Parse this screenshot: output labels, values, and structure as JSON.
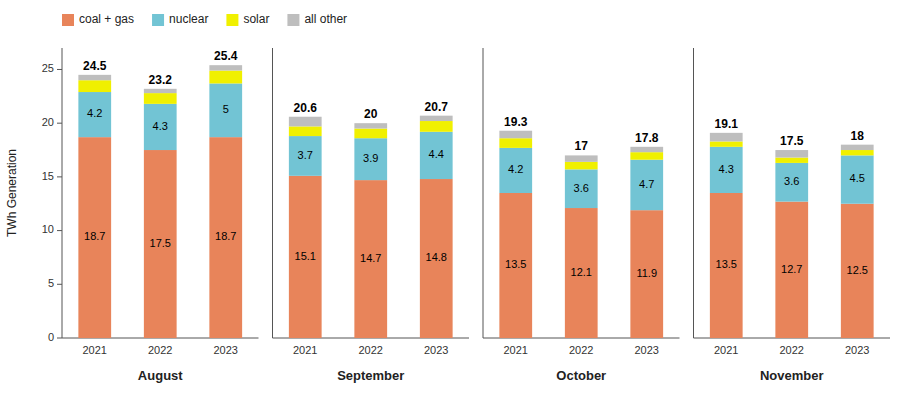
{
  "chart_data": [
    {
      "type": "bar",
      "stacked": true,
      "legend": "top",
      "xlabel": "August",
      "ylabel": "TWh Generation",
      "categories": [
        "2021",
        "2022",
        "2023"
      ],
      "ylim": [
        0,
        27
      ],
      "yticks": [
        0,
        5,
        10,
        15,
        20,
        25
      ],
      "series": [
        {
          "name": "coal + gas",
          "color": "#E8845A",
          "data_labels": true,
          "values": [
            18.7,
            17.5,
            18.7
          ]
        },
        {
          "name": "nuclear",
          "color": "#72C4D4",
          "data_labels": true,
          "values": [
            4.2,
            4.3,
            5.0
          ]
        },
        {
          "name": "solar",
          "color": "#F0F000",
          "values": [
            1.1,
            1.0,
            1.2
          ]
        },
        {
          "name": "all other",
          "color": "#BEBEBE",
          "values": [
            0.5,
            0.4,
            0.5
          ]
        }
      ],
      "totals": [
        24.5,
        23.2,
        25.4
      ]
    },
    {
      "type": "bar",
      "stacked": true,
      "tick_labels": "x",
      "xlabel": "September",
      "categories": [
        "2021",
        "2022",
        "2023"
      ],
      "ylim": [
        0,
        27
      ],
      "series": [
        {
          "name": "coal + gas",
          "color": "#E8845A",
          "data_labels": true,
          "values": [
            15.1,
            14.7,
            14.8
          ]
        },
        {
          "name": "nuclear",
          "color": "#72C4D4",
          "data_labels": true,
          "values": [
            3.7,
            3.9,
            4.4
          ]
        },
        {
          "name": "solar",
          "color": "#F0F000",
          "values": [
            0.9,
            0.9,
            1.0
          ]
        },
        {
          "name": "all other",
          "color": "#BEBEBE",
          "values": [
            0.9,
            0.5,
            0.5
          ]
        }
      ],
      "totals": [
        20.6,
        20.0,
        20.7
      ]
    },
    {
      "type": "bar",
      "stacked": true,
      "tick_labels": "x",
      "xlabel": "October",
      "categories": [
        "2021",
        "2022",
        "2023"
      ],
      "ylim": [
        0,
        27
      ],
      "series": [
        {
          "name": "coal + gas",
          "color": "#E8845A",
          "data_labels": true,
          "values": [
            13.5,
            12.1,
            11.9
          ]
        },
        {
          "name": "nuclear",
          "color": "#72C4D4",
          "data_labels": true,
          "values": [
            4.2,
            3.6,
            4.7
          ]
        },
        {
          "name": "solar",
          "color": "#F0F000",
          "values": [
            0.9,
            0.7,
            0.7
          ]
        },
        {
          "name": "all other",
          "color": "#BEBEBE",
          "values": [
            0.7,
            0.6,
            0.5
          ]
        }
      ],
      "totals": [
        19.3,
        17.0,
        17.8
      ]
    },
    {
      "type": "bar",
      "stacked": true,
      "tick_labels": "x",
      "xlabel": "November",
      "categories": [
        "2021",
        "2022",
        "2023"
      ],
      "ylim": [
        0,
        27
      ],
      "series": [
        {
          "name": "coal + gas",
          "color": "#E8845A",
          "data_labels": true,
          "values": [
            13.5,
            12.7,
            12.5
          ]
        },
        {
          "name": "nuclear",
          "color": "#72C4D4",
          "data_labels": true,
          "values": [
            4.3,
            3.6,
            4.5
          ]
        },
        {
          "name": "solar",
          "color": "#F0F000",
          "values": [
            0.5,
            0.5,
            0.5
          ]
        },
        {
          "name": "all other",
          "color": "#BEBEBE",
          "values": [
            0.8,
            0.7,
            0.5
          ]
        }
      ],
      "totals": [
        19.1,
        17.5,
        18.0
      ]
    }
  ]
}
